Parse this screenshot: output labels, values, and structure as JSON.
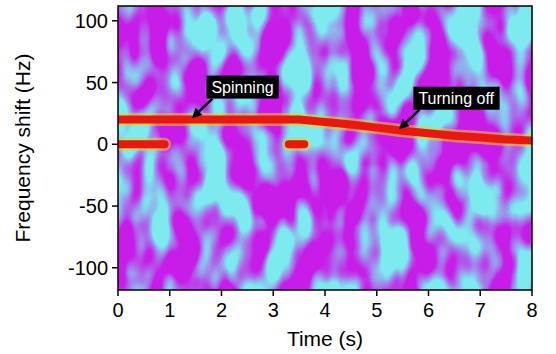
{
  "chart_data": {
    "type": "line",
    "x_label": "Time (s)",
    "y_label": "Frequency shift (Hz)",
    "xlim": [
      0,
      8
    ],
    "ylim": [
      -118,
      112
    ],
    "xticks": [
      0,
      1,
      2,
      3,
      4,
      5,
      6,
      7,
      8
    ],
    "yticks": [
      -100,
      -50,
      0,
      50,
      100
    ],
    "grid": false,
    "series": [
      {
        "color": "#e8180c",
        "x": [
          0,
          0.5,
          1,
          1.5,
          2,
          2.5,
          3,
          3.5,
          4,
          4.5,
          5,
          5.5,
          6,
          6.5,
          7,
          7.5,
          8
        ],
        "values": [
          20,
          20,
          20,
          20,
          20,
          20,
          20,
          20,
          18,
          16,
          13.5,
          11,
          9,
          7,
          5.5,
          4,
          3
        ]
      },
      {
        "color": "#e8180c",
        "x": [
          0,
          0.9,
          1,
          3.3,
          3.6
        ],
        "values": [
          0,
          0,
          null,
          0,
          0
        ]
      }
    ],
    "annotations": [
      {
        "text": "Spinning",
        "x": 1.4,
        "y": 20
      },
      {
        "text": "Turning off",
        "x": 5.4,
        "y": 11
      }
    ]
  }
}
